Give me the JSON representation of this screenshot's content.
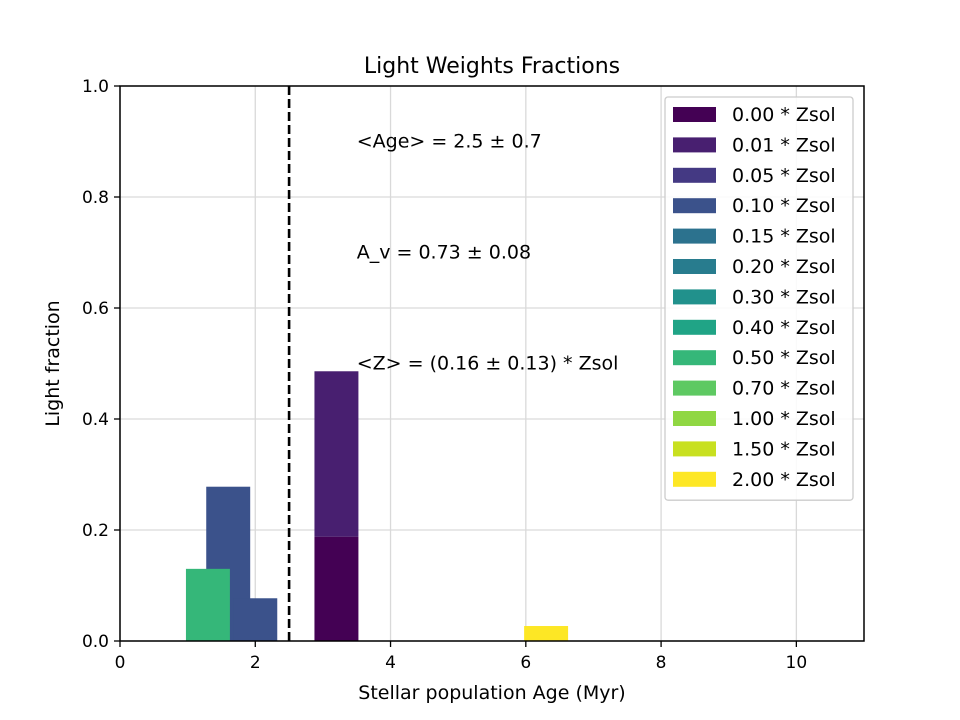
{
  "chart_data": {
    "type": "bar",
    "title": "Light Weights Fractions",
    "xlabel": "Stellar population Age (Myr)",
    "ylabel": "Light fraction",
    "xlim": [
      0,
      11
    ],
    "ylim": [
      0,
      1
    ],
    "xticks": [
      "0",
      "2",
      "4",
      "6",
      "8",
      "10"
    ],
    "yticks": [
      "0.0",
      "0.2",
      "0.4",
      "0.6",
      "0.8",
      "1.0"
    ],
    "grid": true,
    "legend_position": "top-right",
    "bar_width": 0.65,
    "annotations": [
      "<Age> = 2.5 ± 0.7",
      "A_v = 0.73 ± 0.08",
      "<Z> = (0.16 ± 0.13) * Zsol"
    ],
    "vline": {
      "x": 2.5,
      "style": "dashed",
      "color": "#000000"
    },
    "series": [
      {
        "name": "0.00 * Zsol",
        "color": "#440154",
        "bars": [
          {
            "x": 3.2,
            "bottom": 0,
            "height": 0.188
          }
        ]
      },
      {
        "name": "0.01 * Zsol",
        "color": "#481f70",
        "bars": [
          {
            "x": 3.2,
            "bottom": 0.188,
            "height": 0.298
          }
        ]
      },
      {
        "name": "0.05 * Zsol",
        "color": "#443983",
        "bars": []
      },
      {
        "name": "0.10 * Zsol",
        "color": "#3b528b",
        "bars": [
          {
            "x": 1.6,
            "bottom": 0,
            "height": 0.278
          },
          {
            "x": 2.0,
            "bottom": 0,
            "height": 0.077
          }
        ]
      },
      {
        "name": "0.15 * Zsol",
        "color": "#2c728e",
        "bars": []
      },
      {
        "name": "0.20 * Zsol",
        "color": "#287c8e",
        "bars": []
      },
      {
        "name": "0.30 * Zsol",
        "color": "#21918c",
        "bars": []
      },
      {
        "name": "0.40 * Zsol",
        "color": "#20a486",
        "bars": []
      },
      {
        "name": "0.50 * Zsol",
        "color": "#35b779",
        "bars": [
          {
            "x": 1.3,
            "bottom": 0,
            "height": 0.13
          }
        ]
      },
      {
        "name": "0.70 * Zsol",
        "color": "#5ec962",
        "bars": []
      },
      {
        "name": "1.00 * Zsol",
        "color": "#90d743",
        "bars": []
      },
      {
        "name": "1.50 * Zsol",
        "color": "#c8e020",
        "bars": []
      },
      {
        "name": "2.00 * Zsol",
        "color": "#fde725",
        "bars": [
          {
            "x": 6.3,
            "bottom": 0,
            "height": 0.027
          }
        ]
      }
    ]
  }
}
